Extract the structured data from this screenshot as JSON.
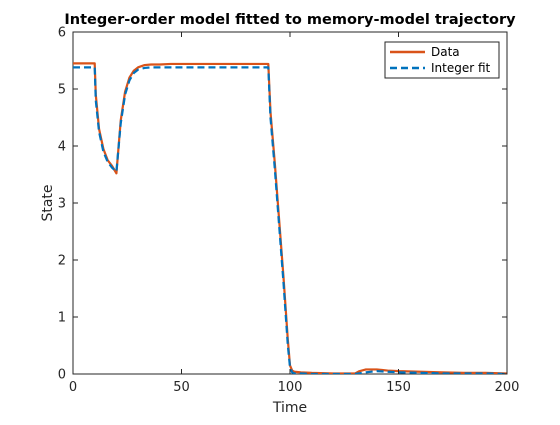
{
  "chart_data": {
    "type": "line",
    "title": "Integer-order model fitted to memory-model trajectory",
    "xlabel": "Time",
    "ylabel": "State",
    "xlim": [
      0,
      200
    ],
    "ylim": [
      0,
      6
    ],
    "xticks": [
      0,
      50,
      100,
      150,
      200
    ],
    "yticks": [
      0,
      1,
      2,
      3,
      4,
      5,
      6
    ],
    "grid": false,
    "legend_position": "top-right",
    "series": [
      {
        "name": "Data",
        "color": "#D95319",
        "style": "solid",
        "x": [
          0,
          10,
          10.5,
          12,
          14,
          16,
          18,
          20,
          22,
          24,
          26,
          28,
          30,
          33,
          36,
          40,
          45,
          50,
          60,
          70,
          80,
          90,
          91,
          93,
          95,
          97,
          99,
          100,
          101,
          102,
          105,
          110,
          120,
          130,
          132,
          135,
          140,
          145,
          150,
          160,
          170,
          180,
          190,
          200
        ],
        "y": [
          5.45,
          5.45,
          4.9,
          4.3,
          3.95,
          3.75,
          3.65,
          3.52,
          4.45,
          4.95,
          5.2,
          5.32,
          5.38,
          5.42,
          5.43,
          5.43,
          5.44,
          5.44,
          5.44,
          5.44,
          5.44,
          5.44,
          4.6,
          3.7,
          2.7,
          1.7,
          0.6,
          0.15,
          0.06,
          0.04,
          0.03,
          0.02,
          0.01,
          0.01,
          0.05,
          0.08,
          0.08,
          0.06,
          0.05,
          0.04,
          0.03,
          0.02,
          0.02,
          0.01
        ]
      },
      {
        "name": "Integer fit",
        "color": "#0072BD",
        "style": "dashed",
        "x": [
          0,
          10,
          10.5,
          12,
          14,
          16,
          18,
          20,
          22,
          24,
          26,
          28,
          30,
          33,
          36,
          40,
          45,
          50,
          60,
          70,
          80,
          90,
          91,
          93,
          95,
          97,
          99,
          100,
          101,
          102,
          105,
          110,
          120,
          130,
          135,
          140,
          145,
          150,
          160,
          170,
          180,
          190,
          200
        ],
        "y": [
          5.38,
          5.38,
          4.8,
          4.25,
          3.9,
          3.72,
          3.62,
          3.55,
          4.4,
          4.9,
          5.15,
          5.28,
          5.34,
          5.37,
          5.38,
          5.38,
          5.38,
          5.38,
          5.38,
          5.38,
          5.38,
          5.38,
          4.5,
          3.6,
          2.6,
          1.6,
          0.5,
          0.12,
          0.03,
          0.01,
          0.01,
          0.0,
          0.0,
          0.0,
          0.03,
          0.05,
          0.04,
          0.03,
          0.02,
          0.01,
          0.01,
          0.01,
          0.0
        ]
      }
    ]
  }
}
